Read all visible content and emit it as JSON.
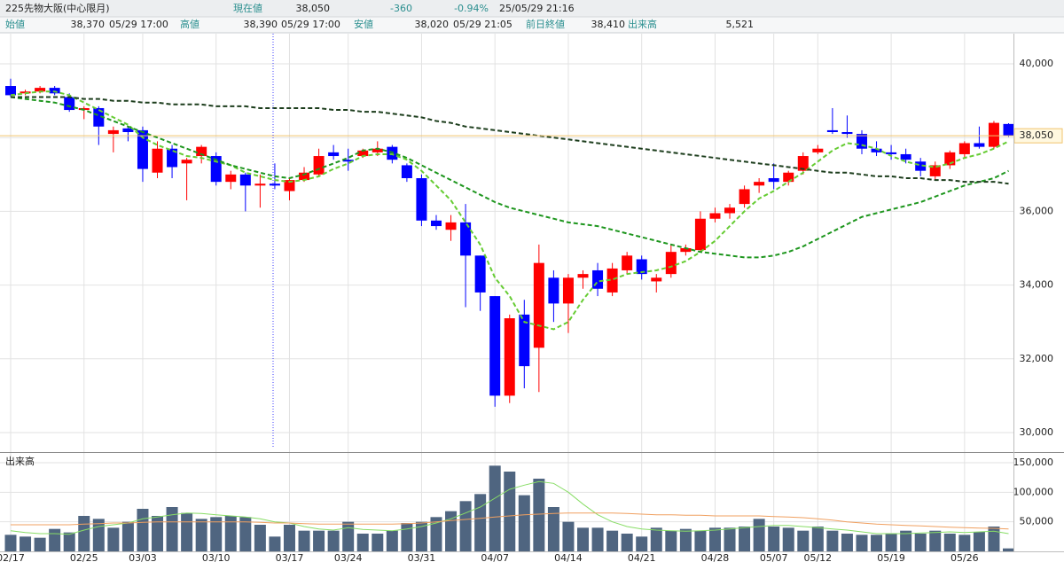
{
  "header": {
    "title": "225先物大阪(中心限月)",
    "current": {
      "label": "現在値",
      "price": "38,050",
      "change": "-360",
      "change_pct": "-0.94%",
      "time": "25/05/29 21:16"
    },
    "stats": [
      {
        "label": "始値",
        "value": "38,370",
        "time": "05/29 17:00"
      },
      {
        "label": "高値",
        "value": "38,390",
        "time": "05/29 17:00"
      },
      {
        "label": "安値",
        "value": "38,020",
        "time": "05/29 21:05"
      },
      {
        "label": "前日終値",
        "value": "38,410"
      },
      {
        "label": "出来高",
        "value": "5,521"
      }
    ]
  },
  "chart_data": [
    {
      "type": "candlestick",
      "up_color": "#ff0000",
      "down_color": "#0000ff",
      "open": [
        39400,
        39200,
        39250,
        39350,
        39100,
        38750,
        38800,
        38100,
        38250,
        38200,
        37050,
        37700,
        37300,
        37500,
        37500,
        36800,
        37000,
        36700,
        36750,
        36550,
        36850,
        37000,
        37600,
        37400,
        37500,
        37600,
        37750,
        37250,
        36900,
        35750,
        35500,
        35700,
        34800,
        33700,
        31000,
        33200,
        32300,
        34200,
        33500,
        34200,
        34400,
        33800,
        34400,
        34700,
        34100,
        34300,
        34900,
        34950,
        35800,
        35950,
        36200,
        36700,
        36900,
        36800,
        37100,
        37600,
        38200,
        38150,
        38100,
        37700,
        37600,
        37550,
        37350,
        36950,
        37250,
        37550,
        37850,
        37750,
        38370
      ],
      "high": [
        39600,
        39300,
        39400,
        39400,
        39200,
        38850,
        38850,
        38300,
        38300,
        38300,
        37900,
        37800,
        37450,
        37800,
        37600,
        37100,
        37050,
        37000,
        37300,
        36900,
        37200,
        37700,
        37800,
        37700,
        37700,
        37900,
        37800,
        37300,
        37000,
        35900,
        35900,
        36200,
        34800,
        33700,
        33200,
        33600,
        35100,
        34400,
        34300,
        34400,
        34600,
        34600,
        34900,
        34800,
        34300,
        35100,
        35100,
        36000,
        36100,
        36200,
        36700,
        36900,
        37300,
        37100,
        37600,
        37800,
        38800,
        38600,
        38200,
        37900,
        37800,
        37700,
        37450,
        37350,
        37650,
        37900,
        38300,
        38450,
        38390
      ],
      "low": [
        39100,
        39150,
        39200,
        39150,
        38700,
        38500,
        37800,
        37600,
        37900,
        36800,
        36900,
        36900,
        36300,
        37300,
        36700,
        36600,
        36000,
        36100,
        36600,
        36300,
        36800,
        36950,
        37400,
        37100,
        37450,
        37500,
        37300,
        36800,
        35600,
        35500,
        35200,
        33400,
        33300,
        30700,
        30800,
        31200,
        31100,
        33000,
        32700,
        33900,
        33700,
        33700,
        34300,
        34150,
        33800,
        34200,
        34800,
        34900,
        35700,
        35800,
        36100,
        36500,
        36600,
        36700,
        37000,
        37550,
        38100,
        38000,
        37550,
        37500,
        37400,
        37300,
        36950,
        36850,
        37150,
        37450,
        37700,
        37700,
        38020
      ],
      "close": [
        39150,
        39250,
        39350,
        39200,
        38750,
        38800,
        38300,
        38200,
        38150,
        37150,
        37700,
        37200,
        37400,
        37750,
        36800,
        37000,
        36700,
        36750,
        36700,
        36850,
        37050,
        37500,
        37500,
        37350,
        37650,
        37700,
        37400,
        36900,
        35750,
        35600,
        35700,
        34800,
        33800,
        31000,
        33100,
        31800,
        34600,
        33500,
        34200,
        34300,
        33900,
        34450,
        34800,
        34300,
        34200,
        34900,
        35000,
        35800,
        35950,
        36100,
        36600,
        36800,
        36800,
        37050,
        37500,
        37700,
        38150,
        38100,
        37700,
        37600,
        37550,
        37400,
        37100,
        37250,
        37600,
        37850,
        37750,
        38400,
        38050
      ],
      "series": [
        {
          "color": "#66cc33",
          "dashed": true,
          "values": [
            39150,
            39200,
            39250,
            39250,
            39150,
            38950,
            38750,
            38550,
            38350,
            38000,
            37800,
            37650,
            37500,
            37450,
            37350,
            37250,
            37050,
            36950,
            36850,
            36800,
            36850,
            36950,
            37150,
            37300,
            37500,
            37550,
            37550,
            37400,
            37100,
            36700,
            36300,
            35700,
            35100,
            34200,
            33700,
            33000,
            32900,
            32800,
            33000,
            33600,
            34100,
            34150,
            34300,
            34350,
            34400,
            34500,
            34650,
            34900,
            35200,
            35600,
            36000,
            36350,
            36550,
            36800,
            37050,
            37350,
            37650,
            37850,
            37800,
            37700,
            37500,
            37350,
            37250,
            37200,
            37300,
            37450,
            37550,
            37700,
            37900
          ]
        },
        {
          "color": "#1e961e",
          "dashed": true,
          "values": [
            39100,
            39050,
            39000,
            38950,
            38850,
            38750,
            38600,
            38450,
            38300,
            38150,
            38000,
            37850,
            37700,
            37550,
            37400,
            37250,
            37150,
            37050,
            36950,
            36900,
            37000,
            37150,
            37300,
            37450,
            37650,
            37700,
            37600,
            37450,
            37250,
            37050,
            36850,
            36650,
            36450,
            36250,
            36100,
            36000,
            35900,
            35800,
            35700,
            35650,
            35600,
            35500,
            35400,
            35300,
            35200,
            35100,
            35000,
            34900,
            34850,
            34800,
            34750,
            34750,
            34800,
            34900,
            35050,
            35250,
            35450,
            35650,
            35850,
            35950,
            36050,
            36150,
            36250,
            36400,
            36550,
            36700,
            36800,
            36900,
            37100
          ]
        },
        {
          "color": "#1c3d1c",
          "dashed": true,
          "values": [
            39100,
            39100,
            39100,
            39100,
            39100,
            39050,
            39050,
            39000,
            39000,
            38950,
            38950,
            38900,
            38900,
            38900,
            38850,
            38850,
            38850,
            38800,
            38800,
            38800,
            38800,
            38800,
            38750,
            38750,
            38700,
            38700,
            38650,
            38600,
            38550,
            38450,
            38400,
            38300,
            38250,
            38200,
            38150,
            38100,
            38050,
            38000,
            37950,
            37900,
            37850,
            37800,
            37750,
            37700,
            37650,
            37600,
            37550,
            37500,
            37450,
            37400,
            37350,
            37300,
            37250,
            37200,
            37150,
            37100,
            37050,
            37050,
            37000,
            36950,
            36950,
            36900,
            36900,
            36850,
            36850,
            36800,
            36800,
            36800,
            36750
          ]
        }
      ],
      "current_price": {
        "value": 38050,
        "label": "38,050",
        "color": "#f2c46e"
      },
      "ylim": [
        29470,
        40290
      ],
      "yticks": [
        {
          "value": 30000,
          "label": "30,000"
        },
        {
          "value": 32000,
          "label": "32,000"
        },
        {
          "value": 34000,
          "label": "34,000"
        },
        {
          "value": 36000,
          "label": "36,000"
        },
        {
          "value": 38000,
          "label": "38,000"
        },
        {
          "value": 40000,
          "label": "40,000"
        }
      ],
      "grid": true
    },
    {
      "type": "bar",
      "title": "出来高",
      "color": "#4f6580",
      "categories": [
        "02/17",
        null,
        null,
        null,
        null,
        "02/25",
        null,
        null,
        null,
        "03/03",
        null,
        null,
        null,
        null,
        "03/10",
        null,
        null,
        null,
        null,
        "03/17",
        null,
        null,
        null,
        "03/24",
        null,
        null,
        null,
        null,
        "03/31",
        null,
        null,
        null,
        null,
        "04/07",
        null,
        null,
        null,
        null,
        "04/14",
        null,
        null,
        null,
        null,
        "04/21",
        null,
        null,
        null,
        null,
        "04/28",
        null,
        null,
        null,
        "05/07",
        null,
        null,
        "05/12",
        null,
        null,
        null,
        null,
        "05/19",
        null,
        null,
        null,
        null,
        "05/26",
        null,
        null,
        null
      ],
      "values": [
        28000,
        25000,
        23000,
        38000,
        32000,
        60000,
        55000,
        40000,
        50000,
        72000,
        60000,
        75000,
        65000,
        55000,
        58000,
        60000,
        58000,
        45000,
        25000,
        45000,
        35000,
        35000,
        35000,
        50000,
        30000,
        30000,
        35000,
        48000,
        50000,
        58000,
        68000,
        85000,
        97000,
        145000,
        135000,
        95000,
        123000,
        75000,
        50000,
        40000,
        40000,
        35000,
        30000,
        25000,
        40000,
        35000,
        38000,
        35000,
        40000,
        40000,
        42000,
        55000,
        42000,
        40000,
        35000,
        42000,
        35000,
        30000,
        28000,
        28000,
        30000,
        35000,
        30000,
        35000,
        30000,
        28000,
        33000,
        42000,
        5000
      ],
      "series": [
        {
          "color": "#88dd66",
          "values": [
            35000,
            32000,
            30000,
            30000,
            29000,
            36000,
            42000,
            45000,
            48000,
            55000,
            58000,
            62000,
            65000,
            64000,
            62000,
            60000,
            58000,
            55000,
            50000,
            48000,
            42000,
            38000,
            36000,
            40000,
            37000,
            36000,
            35000,
            38000,
            42000,
            48000,
            55000,
            65000,
            75000,
            90000,
            105000,
            112000,
            118000,
            115000,
            100000,
            80000,
            62000,
            50000,
            42000,
            38000,
            36000,
            35000,
            34000,
            35000,
            36000,
            38000,
            40000,
            42000,
            44000,
            44000,
            42000,
            40000,
            38000,
            36000,
            33000,
            30000,
            30000,
            30000,
            31000,
            32000,
            33000,
            32000,
            33000,
            34000,
            30000
          ]
        },
        {
          "color": "#f0a060",
          "values": [
            45000,
            45000,
            45000,
            45000,
            45000,
            46000,
            47000,
            48000,
            48000,
            49000,
            50000,
            50000,
            50000,
            50000,
            50000,
            50000,
            50000,
            49000,
            48000,
            48000,
            47000,
            46000,
            46000,
            46000,
            46000,
            46000,
            46000,
            47000,
            48000,
            50000,
            52000,
            54000,
            56000,
            58000,
            60000,
            62000,
            63000,
            64000,
            65000,
            65000,
            65000,
            65000,
            64000,
            63000,
            62000,
            62000,
            61000,
            61000,
            60000,
            60000,
            60000,
            60000,
            59000,
            58000,
            57000,
            55000,
            53000,
            50000,
            48000,
            46000,
            45000,
            44000,
            43000,
            42000,
            41000,
            40000,
            39500,
            39000,
            38000
          ]
        }
      ],
      "ylim": [
        0,
        165000
      ],
      "yticks": [
        {
          "value": 50000,
          "label": "50,000"
        },
        {
          "value": 100000,
          "label": "100,000"
        },
        {
          "value": 150000,
          "label": "150,000"
        }
      ],
      "grid": true
    }
  ]
}
